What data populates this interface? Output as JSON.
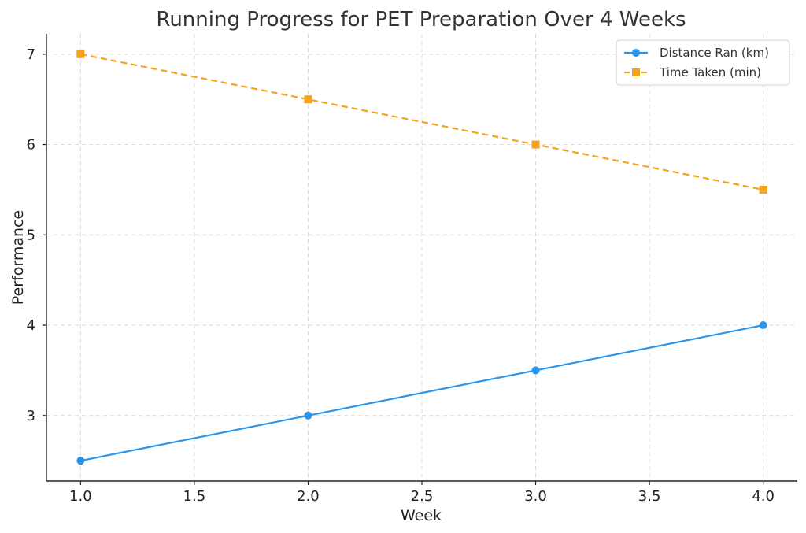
{
  "chart_data": {
    "type": "line",
    "title": "Running Progress for PET Preparation Over 4 Weeks",
    "xlabel": "Week",
    "ylabel": "Performance",
    "x": [
      1,
      2,
      3,
      4
    ],
    "xlim": [
      0.85,
      4.15
    ],
    "ylim": [
      2.275,
      7.225
    ],
    "xticks": [
      1.0,
      1.5,
      2.0,
      2.5,
      3.0,
      3.5,
      4.0
    ],
    "xtick_labels": [
      "1.0",
      "1.5",
      "2.0",
      "2.5",
      "3.0",
      "3.5",
      "4.0"
    ],
    "yticks": [
      3,
      4,
      5,
      6,
      7
    ],
    "ytick_labels": [
      "3",
      "4",
      "5",
      "6",
      "7"
    ],
    "grid": true,
    "legend_position": "top-right",
    "series": [
      {
        "name": "Distance Ran (km)",
        "values": [
          2.5,
          3.0,
          3.5,
          4.0
        ],
        "color": "#2b95e9",
        "marker": "circle",
        "line_style": "solid"
      },
      {
        "name": "Time Taken (min)",
        "values": [
          7.0,
          6.5,
          6.0,
          5.5
        ],
        "color": "#f5a31a",
        "marker": "square",
        "line_style": "dashed"
      }
    ]
  }
}
